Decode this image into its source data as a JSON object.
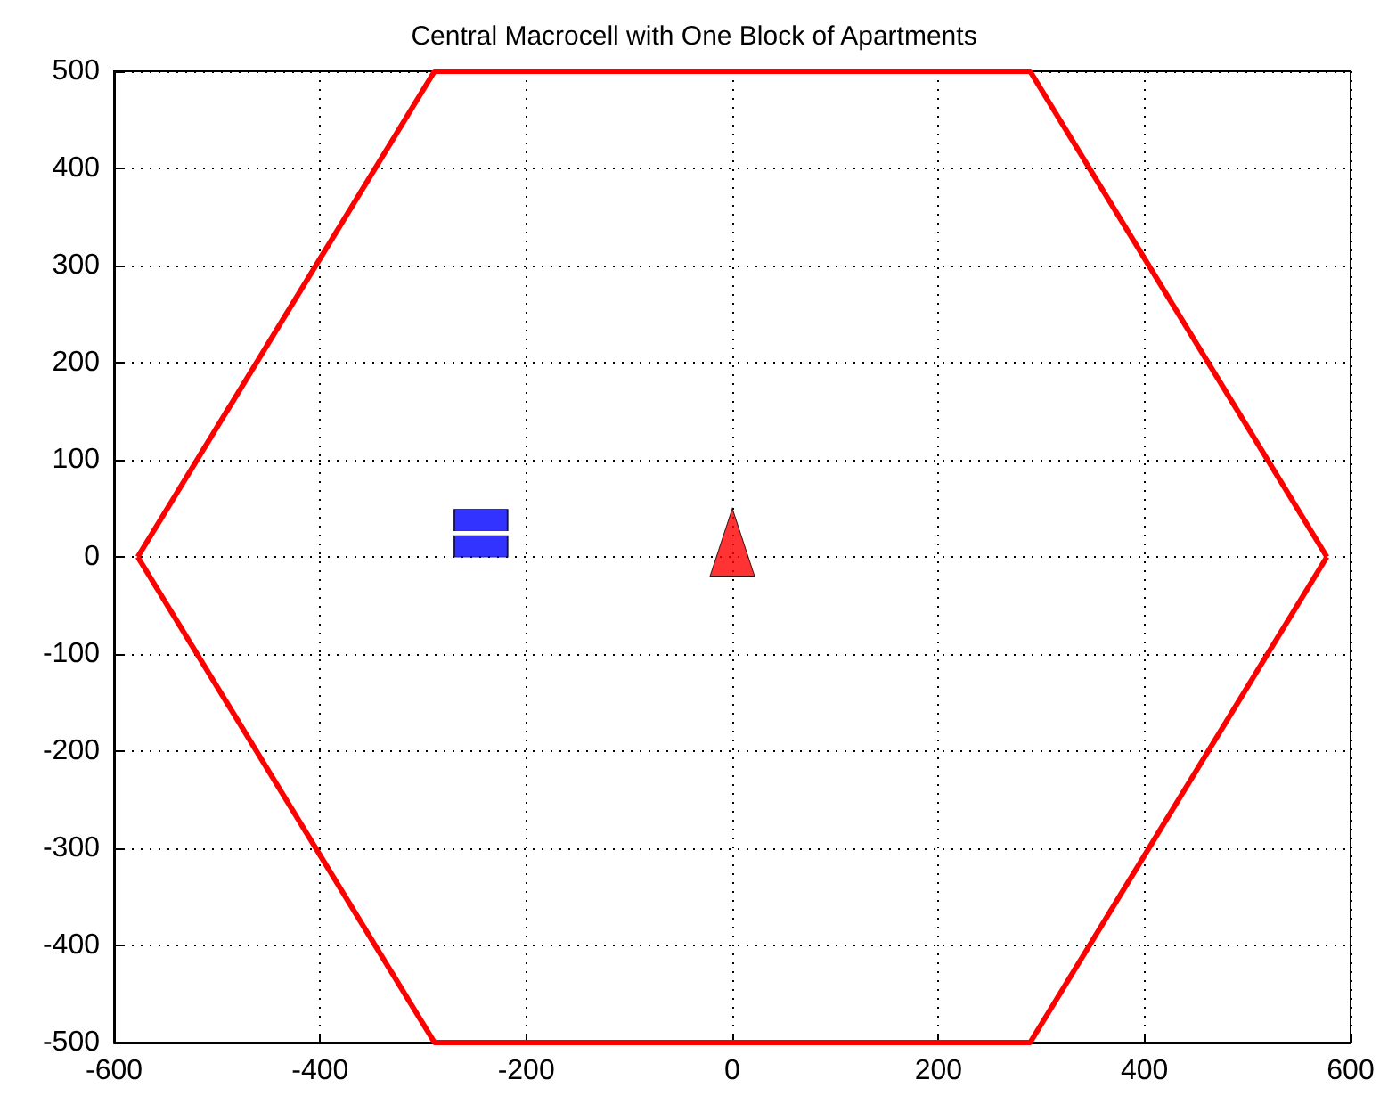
{
  "chart_data": {
    "type": "line",
    "title": "Central Macrocell with One Block of Apartments",
    "series": [
      {
        "color": "#ff0000",
        "marker": "none",
        "line_style": "solid",
        "x": [
          -577,
          -289,
          289,
          577
        ],
        "values": [
          0,
          500,
          500,
          0
        ]
      },
      {
        "color": "#ff0000",
        "marker": "none",
        "line_style": "solid",
        "x": [
          -577,
          -289,
          289,
          577
        ],
        "values": [
          0,
          -500,
          -500,
          0
        ]
      },
      {
        "type": "scatter",
        "color": "#ff0000",
        "marker": "triangle",
        "x": [
          0
        ],
        "values": [
          15
        ]
      },
      {
        "type": "scatter",
        "color": "#0000ff",
        "marker": "square",
        "x": [
          -244,
          -244
        ],
        "values": [
          38,
          11
        ]
      }
    ],
    "xlim": [
      -600,
      600
    ],
    "xticks": [
      -600,
      -400,
      -200,
      0,
      200,
      400,
      600
    ],
    "ylim": [
      -500,
      500
    ],
    "yticks": [
      -500,
      -400,
      -300,
      -200,
      -100,
      0,
      100,
      200,
      300,
      400,
      500
    ],
    "grid": true
  }
}
